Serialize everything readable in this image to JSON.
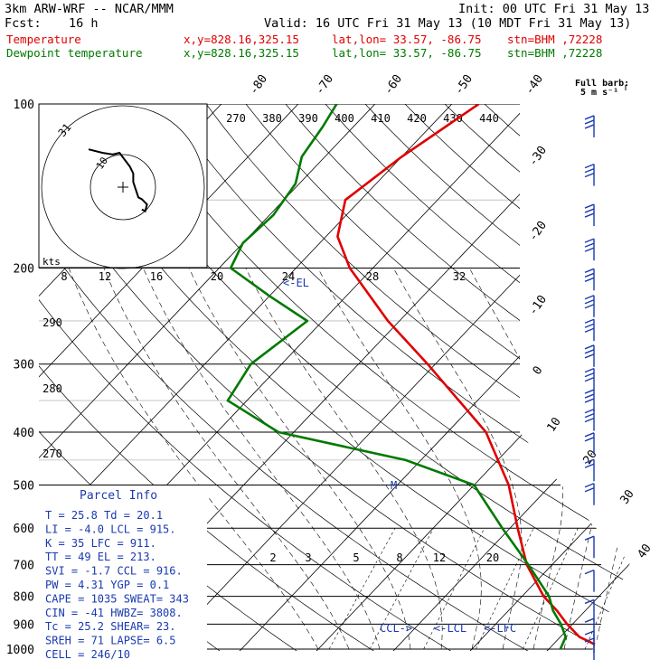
{
  "header": {
    "model": "3km ARW-WRF -- NCAR/MMM",
    "init": "Init: 00 UTC Fri 31 May 13",
    "fcst_label": "Fcst:",
    "fcst_value": "16 h",
    "valid": "Valid: 16 UTC Fri 31 May 13 (10 MDT Fri 31 May 13)",
    "temperature": {
      "label": "Temperature",
      "xy": "x,y=828.16,325.15",
      "latlon": "lat,lon= 33.57, -86.75",
      "stn": "stn=BHM ,72228"
    },
    "dewpoint": {
      "label": "Dewpoint temperature",
      "xy": "x,y=828.16,325.15",
      "latlon": "lat,lon= 33.57, -86.75",
      "stn": "stn=BHM ,72228"
    }
  },
  "barb_key": {
    "line1": "Full barb:",
    "line2": "5 m s⁻¹"
  },
  "chart_data": {
    "type": "line",
    "title": "",
    "p_ticks": [
      100,
      200,
      300,
      400,
      500,
      600,
      700,
      800,
      900,
      1000
    ],
    "temp_labels": [
      "-80",
      "-70",
      "-60",
      "-50",
      "-40",
      "-30",
      "-20",
      "-10",
      "0",
      "10",
      "20",
      "30",
      "40"
    ],
    "theta_labels": [
      "270",
      "380",
      "390",
      "400",
      "410",
      "420",
      "430",
      "440"
    ],
    "dry_labels": [
      "290",
      "280",
      "270"
    ],
    "mix_labels": [
      "2",
      "3",
      "5",
      "8",
      "12",
      "20"
    ],
    "series": [
      {
        "name": "Temperature",
        "color": "#e00000",
        "points": [
          [
            1000,
            27.3
          ],
          [
            950,
            22.5
          ],
          [
            900,
            19.3
          ],
          [
            850,
            16.3
          ],
          [
            800,
            12.8
          ],
          [
            700,
            6.7
          ],
          [
            600,
            1.0
          ],
          [
            500,
            -5.5
          ],
          [
            400,
            -15.0
          ],
          [
            300,
            -31.0
          ],
          [
            250,
            -41.5
          ],
          [
            200,
            -53.0
          ],
          [
            175,
            -58.5
          ],
          [
            150,
            -62.0
          ],
          [
            125,
            -60.0
          ],
          [
            110,
            -58.0
          ],
          [
            100,
            -56.5
          ]
        ]
      },
      {
        "name": "Dewpoint temperature",
        "color": "#007a00",
        "points": [
          [
            1000,
            21.5
          ],
          [
            950,
            20.7
          ],
          [
            900,
            18.5
          ],
          [
            850,
            15.8
          ],
          [
            800,
            13.5
          ],
          [
            700,
            6.9
          ],
          [
            600,
            -1.0
          ],
          [
            500,
            -10.0
          ],
          [
            450,
            -22.0
          ],
          [
            400,
            -42.0
          ],
          [
            350,
            -52.5
          ],
          [
            300,
            -54.0
          ],
          [
            250,
            -52.0
          ],
          [
            225,
            -60.0
          ],
          [
            200,
            -68.5
          ],
          [
            180,
            -70.0
          ],
          [
            160,
            -69.5
          ],
          [
            140,
            -70.5
          ],
          [
            125,
            -73.0
          ],
          [
            110,
            -74.0
          ],
          [
            100,
            -75.0
          ]
        ]
      }
    ],
    "parcel_markers": [
      {
        "label": "<-EL",
        "p": 213
      },
      {
        "label": "M",
        "p": 490
      },
      {
        "label": "CCL->",
        "p": 916
      },
      {
        "label": "<-LCL",
        "p": 915
      },
      {
        "label": "<-LFC",
        "p": 911
      }
    ],
    "hodograph": {
      "rings_label": [
        "31",
        "10"
      ],
      "kts_label": "kts",
      "scale_labels": [
        "8",
        "12",
        "16",
        "20",
        "24",
        "28",
        "32"
      ],
      "points": [
        [
          -20,
          22
        ],
        [
          -12,
          20
        ],
        [
          -6,
          19
        ],
        [
          -2,
          20
        ],
        [
          1,
          16
        ],
        [
          4,
          12
        ],
        [
          6,
          8
        ],
        [
          6,
          3
        ],
        [
          9,
          -6
        ],
        [
          11,
          -7
        ],
        [
          14,
          -10
        ],
        [
          13,
          -14
        ],
        [
          11,
          -13
        ]
      ]
    },
    "wind_barbs": [
      {
        "p": 110,
        "spd": 15
      },
      {
        "p": 135,
        "spd": 15
      },
      {
        "p": 160,
        "spd": 15
      },
      {
        "p": 185,
        "spd": 15
      },
      {
        "p": 210,
        "spd": 15
      },
      {
        "p": 235,
        "spd": 15
      },
      {
        "p": 260,
        "spd": 15
      },
      {
        "p": 290,
        "spd": 15
      },
      {
        "p": 320,
        "spd": 15
      },
      {
        "p": 350,
        "spd": 15
      },
      {
        "p": 380,
        "spd": 15
      },
      {
        "p": 420,
        "spd": 10
      },
      {
        "p": 470,
        "spd": 10
      },
      {
        "p": 520,
        "spd": 10
      },
      {
        "p": 650,
        "spd": 5
      },
      {
        "p": 750,
        "spd": 5
      },
      {
        "p": 850,
        "spd": 5
      },
      {
        "p": 920,
        "spd": 5
      },
      {
        "p": 970,
        "spd": 5
      },
      {
        "p": 1000,
        "spd": 5
      }
    ]
  },
  "parcel_info": {
    "title": "Parcel Info",
    "rows": [
      "T  =    25.8  Td =  20.1",
      "LI =   -4.0  LCL =  915.",
      "K  =     35  LFC =  911.",
      "TT =     49  EL  =  213.",
      "SVI =  -1.7  CCL =  916.",
      "PW =   4.31  YGP =   0.1",
      "CAPE =  1035  SWEAT=  343",
      "CIN =    -41  HWBZ= 3808.",
      "Tc =   25.2  SHEAR=  23.",
      "SREH =    71  LAPSE=  6.5",
      "CELL = 246/10"
    ]
  }
}
